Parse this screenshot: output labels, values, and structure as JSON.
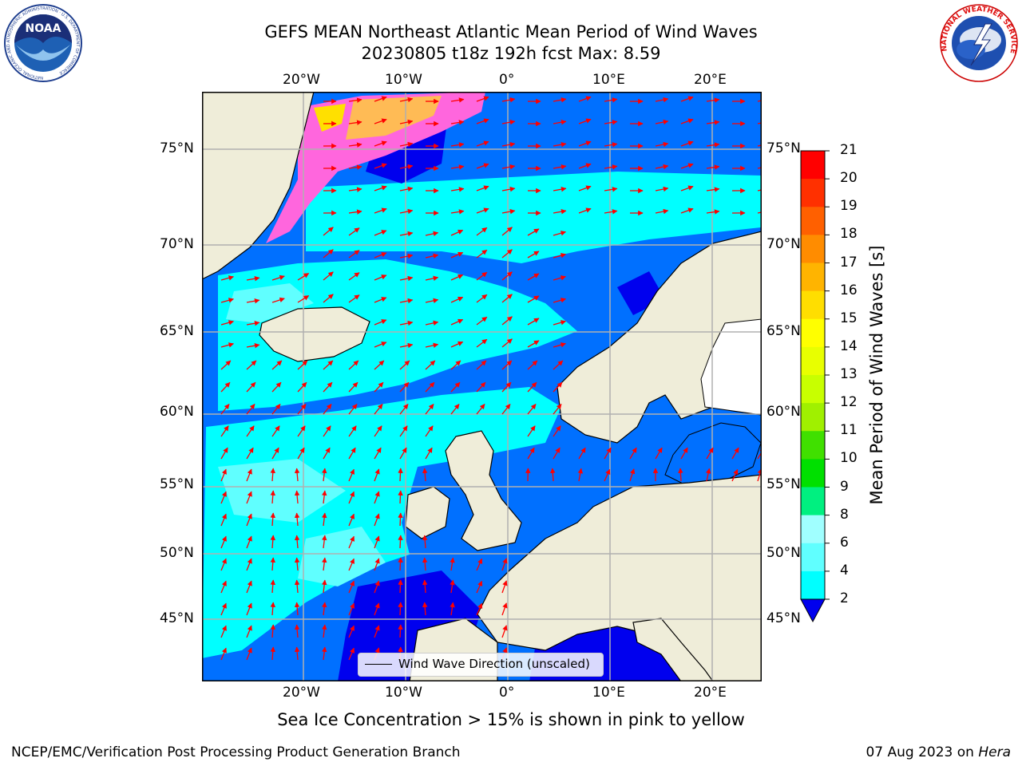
{
  "title": {
    "line1": "GEFS MEAN Northeast Atlantic Mean Period of Wind Waves",
    "line2": "20230805 t18z 192h fcst   Max: 8.59"
  },
  "map": {
    "top_lon_labels": [
      "20°W",
      "10°W",
      "0°",
      "10°E",
      "20°E"
    ],
    "bottom_lon_labels": [
      "20°W",
      "10°W",
      "0°",
      "10°E",
      "20°E"
    ],
    "lat_labels": [
      "75°N",
      "70°N",
      "65°N",
      "60°N",
      "55°N",
      "50°N",
      "45°N"
    ],
    "legend_label": "Wind Wave Direction (unscaled)",
    "arrow_color": "#ff0000",
    "land_color": "#efedd9",
    "grid_color": "#b0b0b0"
  },
  "colorbar": {
    "label": "Mean Period of Wind Waves [s]",
    "ticks": [
      "21",
      "20",
      "19",
      "18",
      "17",
      "16",
      "15",
      "14",
      "13",
      "12",
      "11",
      "10",
      "9",
      "8",
      "6",
      "4",
      "2"
    ],
    "colors": [
      "#ff0000",
      "#ff3000",
      "#ff6000",
      "#ff8c00",
      "#ffb400",
      "#ffde00",
      "#ffff00",
      "#e8ff00",
      "#c8ff00",
      "#a0f000",
      "#40e000",
      "#00e000",
      "#00f080",
      "#a0ffff",
      "#60ffff",
      "#00ffff",
      "#0070ff"
    ],
    "under_color": "#0000ee"
  },
  "subnote": "Sea Ice Concentration > 15% is shown in pink to yellow",
  "footer": {
    "credit": "NCEP/EMC/Verification Post Processing Product Generation Branch",
    "date_prefix": "07 Aug 2023 on ",
    "date_host": "Hera"
  },
  "logos": {
    "noaa": "NOAA",
    "noaa_ring": "NATIONAL OCEANIC AND ATMOSPHERIC ADMINISTRATION · U.S. DEPARTMENT OF COMMERCE",
    "nws_ring": "NATIONAL WEATHER SERVICE"
  }
}
